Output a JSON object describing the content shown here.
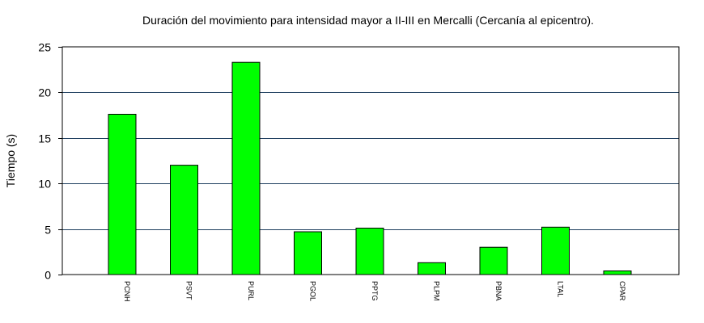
{
  "chart_data": {
    "type": "bar",
    "title": "Duración del movimiento para intensidad mayor a II-III en Mercalli (Cercanía al epicentro).",
    "xlabel": "",
    "ylabel": "Tiempo (s)",
    "categories": [
      "PCNH",
      "PSVT",
      "PURL",
      "PGOL",
      "PPTG",
      "PLPM",
      "PBNA",
      "LTAL",
      "CPAR"
    ],
    "values": [
      17.6,
      12.0,
      23.3,
      4.7,
      5.1,
      1.3,
      3.0,
      5.2,
      0.4
    ],
    "ylim": [
      0,
      25
    ],
    "yticks": [
      0,
      5,
      10,
      15,
      20,
      25
    ],
    "grid": "horizontal",
    "legend": "none",
    "bar_color": "#00ff00",
    "grid_color": "#1f3f5f"
  }
}
